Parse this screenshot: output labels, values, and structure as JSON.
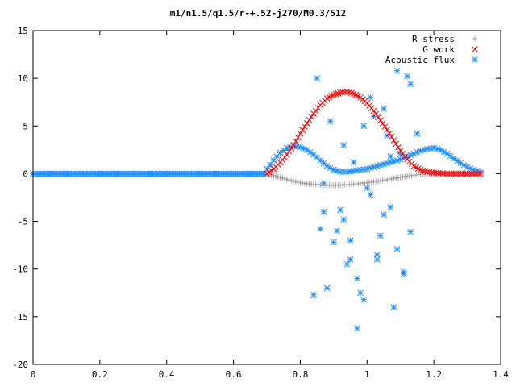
{
  "chart_data": {
    "type": "scatter",
    "title": "m1/n1.5/q1.5/r-+.52-j270/M0.3/512",
    "xlabel": "",
    "ylabel": "",
    "xlim": [
      0,
      1.4
    ],
    "ylim": [
      -20,
      15
    ],
    "grid": false,
    "legend_position": "top-right",
    "xticks": [
      "0",
      "0.2",
      "0.4",
      "0.6",
      "0.8",
      "1",
      "1.2",
      "1.4"
    ],
    "xtick_values": [
      0,
      0.2,
      0.4,
      0.6,
      0.8,
      1.0,
      1.2,
      1.4
    ],
    "yticks": [
      "15",
      "10",
      "5",
      "0",
      "-5",
      "-10",
      "-15",
      "-20"
    ],
    "ytick_values": [
      15,
      10,
      5,
      0,
      -5,
      -10,
      -15,
      -20
    ],
    "series": [
      {
        "name": "R stress",
        "marker": "plus",
        "color": "#a0a0a0",
        "x": [
          0.7,
          0.72,
          0.74,
          0.76,
          0.78,
          0.8,
          0.82,
          0.84,
          0.86,
          0.88,
          0.9,
          0.92,
          0.94,
          0.96,
          0.98,
          1.0,
          1.02,
          1.04,
          1.06,
          1.08,
          1.1,
          1.12,
          1.14,
          1.16,
          1.18,
          1.2,
          1.22,
          1.24,
          1.26,
          1.28,
          1.3,
          1.32,
          1.34
        ],
        "y": [
          0.0,
          -0.2,
          -0.4,
          -0.6,
          -0.8,
          -0.95,
          -1.05,
          -1.12,
          -1.17,
          -1.2,
          -1.22,
          -1.2,
          -1.15,
          -1.1,
          -1.02,
          -0.95,
          -0.85,
          -0.75,
          -0.62,
          -0.5,
          -0.38,
          -0.25,
          -0.15,
          -0.07,
          -0.02,
          0.0,
          0.0,
          0.0,
          0.0,
          0.0,
          0.0,
          0.0,
          0.0
        ]
      },
      {
        "name": "G work",
        "marker": "cross",
        "color": "#ff0000",
        "x": [
          0.7,
          0.72,
          0.74,
          0.76,
          0.78,
          0.8,
          0.82,
          0.84,
          0.86,
          0.88,
          0.9,
          0.92,
          0.94,
          0.96,
          0.98,
          1.0,
          1.02,
          1.04,
          1.06,
          1.08,
          1.1,
          1.12,
          1.14,
          1.16,
          1.18,
          1.2,
          1.22,
          1.24,
          1.26,
          1.28,
          1.3,
          1.32,
          1.34
        ],
        "y": [
          0.0,
          0.5,
          1.2,
          2.0,
          3.0,
          4.2,
          5.3,
          6.3,
          7.2,
          7.9,
          8.3,
          8.5,
          8.6,
          8.4,
          8.0,
          7.4,
          6.6,
          5.6,
          4.6,
          3.5,
          2.4,
          1.5,
          0.8,
          0.4,
          0.2,
          0.1,
          0.05,
          0.0,
          0.0,
          0.0,
          0.0,
          0.0,
          0.0
        ]
      },
      {
        "name": "Acoustic flux",
        "marker": "star",
        "color": "#1e90ff",
        "x": [
          0.0,
          0.05,
          0.1,
          0.15,
          0.2,
          0.25,
          0.3,
          0.35,
          0.4,
          0.45,
          0.5,
          0.55,
          0.6,
          0.65,
          0.7,
          0.72,
          0.74,
          0.76,
          0.78,
          0.8,
          0.82,
          0.84,
          0.86,
          0.88,
          0.9,
          0.92,
          0.94,
          0.96,
          0.98,
          1.0,
          1.02,
          1.04,
          1.06,
          1.08,
          1.1,
          1.12,
          1.14,
          1.16,
          1.18,
          1.2,
          1.22,
          1.24,
          1.26,
          1.28,
          1.3,
          1.32,
          1.34,
          0.85,
          0.87,
          0.89,
          0.91,
          0.93,
          0.95,
          0.97,
          0.99,
          1.01,
          1.03,
          1.05,
          1.07,
          1.09,
          1.11,
          1.13,
          1.15,
          0.86,
          0.88,
          0.9,
          0.92,
          0.94,
          0.96,
          0.98,
          1.0,
          1.02,
          1.04,
          1.06,
          1.08,
          1.1,
          1.12,
          0.84,
          0.87,
          0.9,
          0.93,
          0.95,
          0.97,
          0.99,
          1.01,
          1.03,
          1.05,
          1.07,
          1.09,
          1.11,
          1.13
        ],
        "y": [
          0.0,
          0.0,
          0.0,
          0.0,
          0.0,
          0.0,
          0.0,
          0.0,
          0.0,
          0.0,
          0.0,
          0.0,
          0.0,
          0.0,
          0.5,
          1.4,
          2.2,
          2.7,
          2.9,
          2.8,
          2.5,
          2.0,
          1.4,
          0.8,
          0.4,
          0.2,
          0.2,
          0.3,
          0.4,
          0.5,
          0.7,
          0.9,
          1.1,
          1.3,
          1.5,
          1.8,
          2.1,
          2.4,
          2.6,
          2.7,
          2.5,
          2.1,
          1.6,
          1.1,
          0.7,
          0.4,
          0.2,
          10.0,
          -4.0,
          5.5,
          -6.0,
          3.0,
          -9.0,
          -16.2,
          -13.2,
          8.0,
          -8.5,
          6.8,
          -3.5,
          10.8,
          -10.5,
          9.4,
          4.2,
          -5.8,
          -12.0,
          -7.2,
          -3.8,
          -9.5,
          1.2,
          -12.5,
          -1.5,
          6.0,
          -6.5,
          4.0,
          -14.0,
          2.1,
          10.2,
          -12.7,
          -1.0,
          0.4,
          -4.8,
          -7.0,
          -11.0,
          5.0,
          -2.2,
          -9.0,
          -4.3,
          1.8,
          -7.9,
          -10.3,
          -6.1
        ]
      }
    ]
  }
}
